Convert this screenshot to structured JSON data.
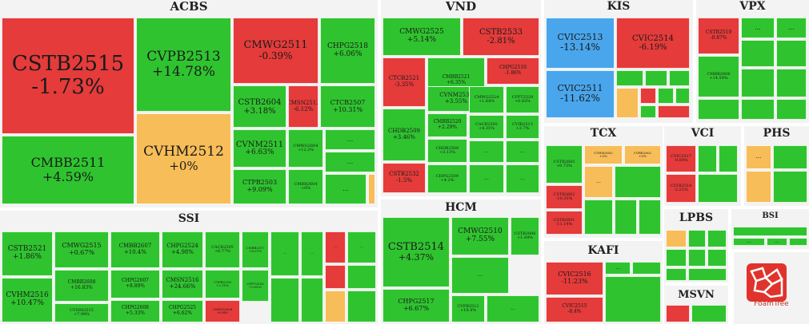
{
  "colors": {
    "up": "#2fc42f",
    "down": "#e53b3b",
    "flat": "#f7bd58",
    "blue": "#49a6ec"
  },
  "chart_data": {
    "type": "treemap",
    "groups": [
      {
        "name": "ACBS",
        "items": [
          {
            "name": "CSTB2515",
            "change": "-1.73%",
            "color": "down"
          },
          {
            "name": "CVPB2513",
            "change": "+14.78%",
            "color": "up"
          },
          {
            "name": "CMWG2511",
            "change": "-0.39%",
            "color": "down"
          },
          {
            "name": "CHPG2518",
            "change": "+6.06%",
            "color": "up"
          },
          {
            "name": "CMBB2511",
            "change": "+4.59%",
            "color": "up"
          },
          {
            "name": "CVHM2512",
            "change": "+0%",
            "color": "flat"
          },
          {
            "name": "CSTB2604",
            "change": "+3.18%",
            "color": "up"
          },
          {
            "name": "CMSN2512",
            "change": "-6.12%",
            "color": "down"
          },
          {
            "name": "CTCB2507",
            "change": "+10.31%",
            "color": "up"
          },
          {
            "name": "CVNM2511",
            "change": "+6.63%",
            "color": "up"
          },
          {
            "name": "CMWG2604",
            "change": "+12.2%",
            "color": "up"
          },
          {
            "name": "CTPB2503",
            "change": "+9.09%",
            "color": "up"
          },
          {
            "name": "CMBB2604",
            "change": "+0%",
            "color": "up"
          },
          {
            "name": "...",
            "change": "",
            "color": "up"
          },
          {
            "name": "...",
            "change": "",
            "color": "up"
          },
          {
            "name": "...",
            "change": "",
            "color": "up"
          },
          {
            "name": "",
            "change": "",
            "color": "flat"
          }
        ]
      },
      {
        "name": "VND",
        "items": [
          {
            "name": "CMWG2525",
            "change": "+5.14%",
            "color": "up"
          },
          {
            "name": "CSTB2533",
            "change": "-2.81%",
            "color": "down"
          },
          {
            "name": "CTCB2521",
            "change": "-3.35%",
            "color": "down"
          },
          {
            "name": "CMBB2521",
            "change": "+6.35%",
            "color": "up"
          },
          {
            "name": "CHPG2510",
            "change": "-1.86%",
            "color": "down"
          },
          {
            "name": "CVNM2533",
            "change": "+3.55%",
            "color": "up"
          },
          {
            "name": "CMWG2524",
            "change": "+1.64%",
            "color": "up"
          },
          {
            "name": "CFPT2529",
            "change": "+0.83%",
            "color": "up"
          },
          {
            "name": "CHDB2509",
            "change": "+3.46%",
            "color": "up"
          },
          {
            "name": "CMBB2520",
            "change": "+2.29%",
            "color": "up"
          },
          {
            "name": "CACB2505",
            "change": "+4.31%",
            "color": "up"
          },
          {
            "name": "CVIB2513",
            "change": "+2.7%",
            "color": "up"
          },
          {
            "name": "CHDB2508",
            "change": "+3.13%",
            "color": "up"
          },
          {
            "name": "CSTB2532",
            "change": "-1.5%",
            "color": "down"
          },
          {
            "name": "CHPG2509",
            "change": "+4.2%",
            "color": "up"
          },
          {
            "name": "...",
            "change": "",
            "color": "up"
          },
          {
            "name": "...",
            "change": "",
            "color": "up"
          },
          {
            "name": "...",
            "change": "",
            "color": "up"
          },
          {
            "name": "...",
            "change": "",
            "color": "up"
          }
        ]
      },
      {
        "name": "KIS",
        "items": [
          {
            "name": "CVIC2513",
            "change": "-13.14%",
            "color": "blue"
          },
          {
            "name": "CVIC2514",
            "change": "-6.19%",
            "color": "down"
          },
          {
            "name": "CVIC2511",
            "change": "-11.62%",
            "color": "blue"
          }
        ]
      },
      {
        "name": "VPX",
        "items": [
          {
            "name": "CSTB2519",
            "change": "-0.87%",
            "color": "down"
          },
          {
            "name": "CMBB2606",
            "change": "+14.59%",
            "color": "up"
          },
          {
            "name": "...",
            "change": "",
            "color": "up"
          },
          {
            "name": "...",
            "change": "",
            "color": "up"
          }
        ]
      },
      {
        "name": "SSI",
        "items": [
          {
            "name": "CSTB2521",
            "change": "+1.86%",
            "color": "up"
          },
          {
            "name": "CMWG2515",
            "change": "+0.67%",
            "color": "up"
          },
          {
            "name": "CMBB2607",
            "change": "+10.4%",
            "color": "up"
          },
          {
            "name": "CHPG2524",
            "change": "+4.98%",
            "color": "up"
          },
          {
            "name": "CACB2505",
            "change": "+6.77%",
            "color": "up"
          },
          {
            "name": "CMBB2517",
            "change": "+6.57%",
            "color": "up"
          },
          {
            "name": "CMBB2608",
            "change": "+16.83%",
            "color": "up"
          },
          {
            "name": "CHPG2607",
            "change": "+8.89%",
            "color": "up"
          },
          {
            "name": "CMSN2516",
            "change": "+24.66%",
            "color": "up"
          },
          {
            "name": "CFPT2516",
            "change": "+0.62%",
            "color": "up"
          },
          {
            "name": "CVHM2516",
            "change": "+10.47%",
            "color": "up"
          },
          {
            "name": "CVNM2515",
            "change": "+7.98%",
            "color": "up"
          },
          {
            "name": "CHPG2608",
            "change": "+5.33%",
            "color": "up"
          },
          {
            "name": "CHPG2525",
            "change": "+6.62%",
            "color": "up"
          },
          {
            "name": "CMWG2608",
            "change": "-6.04%",
            "color": "down"
          },
          {
            "name": "CVPB2516",
            "change": "+2.15%",
            "color": "up"
          },
          {
            "name": "...",
            "change": "",
            "color": "up"
          },
          {
            "name": "...",
            "change": "",
            "color": "up"
          },
          {
            "name": "...",
            "change": "",
            "color": "down"
          },
          {
            "name": "...",
            "change": "",
            "color": "up"
          }
        ]
      },
      {
        "name": "HCM",
        "items": [
          {
            "name": "CSTB2514",
            "change": "+4.37%",
            "color": "up"
          },
          {
            "name": "CMWG2510",
            "change": "+7.55%",
            "color": "up"
          },
          {
            "name": "CSTB2606",
            "change": "+1.84%",
            "color": "up"
          },
          {
            "name": "CHPG2517",
            "change": "+6.67%",
            "color": "up"
          },
          {
            "name": "...",
            "change": "",
            "color": "up"
          },
          {
            "name": "CVPB2512",
            "change": "+18.4%",
            "color": "up"
          },
          {
            "name": "...",
            "change": "",
            "color": "up"
          }
        ]
      },
      {
        "name": "TCX",
        "items": [
          {
            "name": "CSTB2603",
            "change": "+0.73%",
            "color": "up"
          },
          {
            "name": "CVHM2602",
            "change": "+0%",
            "color": "flat"
          },
          {
            "name": "CVRE2602",
            "change": "+0%",
            "color": "flat"
          },
          {
            "name": "CSTB2602",
            "change": "-10.33%",
            "color": "down"
          },
          {
            "name": "CSTB2601",
            "change": "-11.14%",
            "color": "down"
          },
          {
            "name": "...",
            "change": "",
            "color": "flat"
          }
        ]
      },
      {
        "name": "VCI",
        "items": [
          {
            "name": "CVIC2517",
            "change": "-9.84%",
            "color": "down"
          },
          {
            "name": "CSTB2518",
            "change": "-2.21%",
            "color": "down"
          }
        ]
      },
      {
        "name": "PHS",
        "items": [
          {
            "name": "...",
            "change": "",
            "color": "flat"
          }
        ]
      },
      {
        "name": "KAFI",
        "items": [
          {
            "name": "CVIC2516",
            "change": "-11.23%",
            "color": "down"
          },
          {
            "name": "CVIC2515",
            "change": "-8.4%",
            "color": "down"
          },
          {
            "name": "...",
            "change": "",
            "color": "up"
          }
        ]
      },
      {
        "name": "LPBS",
        "items": []
      },
      {
        "name": "BSI",
        "items": [
          {
            "name": "...",
            "change": "",
            "color": "up"
          },
          {
            "name": "...",
            "change": "",
            "color": "up"
          }
        ]
      },
      {
        "name": "MSVN",
        "items": []
      }
    ]
  },
  "logo": {
    "text": "FoamTree"
  }
}
